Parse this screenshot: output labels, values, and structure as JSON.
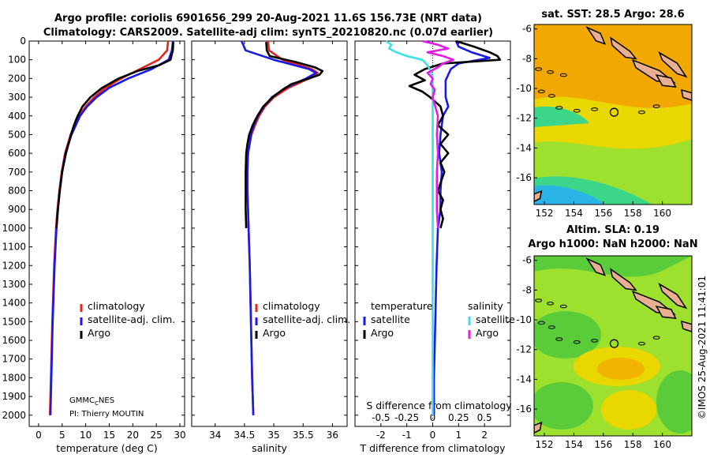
{
  "header": {
    "title_line1": "Argo profile: coriolis 6901656_299 20-Aug-2021 11.6S 156.73E (NRT data)",
    "title_line2": "Climatology: CARS2009. Satellite-adj clim: synTS_20210820.nc (0.07d earlier)"
  },
  "credits": {
    "agency_main": "GMMC",
    "agency_sub": "C",
    "agency_tail": "NES",
    "pi": "PI: Thierry MOUTIN",
    "imos": "©IMOS 25-Aug-2021 11:41:01"
  },
  "colors": {
    "climatology": "#e8231c",
    "satellite": "#1a1ae6",
    "argo": "#000000",
    "t_diff": "#3ee0e6",
    "s_diff": "#e61ae6",
    "land": "#e8b090",
    "ocean_warm": "#f2a800",
    "ocean_mid": "#e8d800"
  },
  "depth_axis": {
    "label_ticks": [
      "0",
      "100",
      "200",
      "300",
      "400",
      "500",
      "600",
      "700",
      "800",
      "900",
      "1000",
      "1100",
      "1200",
      "1300",
      "1400",
      "1500",
      "1600",
      "1700",
      "1800",
      "1900",
      "2000"
    ],
    "range": [
      0,
      2060
    ]
  },
  "chart_data": [
    {
      "type": "line",
      "id": "temperature",
      "xlabel": "temperature (deg C)",
      "xlim": [
        -2,
        31
      ],
      "xticks": [
        "0",
        "5",
        "10",
        "15",
        "20",
        "25",
        "30"
      ],
      "ylim": [
        0,
        2060
      ],
      "legend": [
        "climatology",
        "satellite-adj. clim.",
        "Argo"
      ],
      "series": [
        {
          "name": "climatology",
          "depth": [
            0,
            50,
            100,
            150,
            200,
            250,
            300,
            350,
            400,
            500,
            600,
            700,
            800,
            900,
            1000,
            1200,
            1500,
            1800,
            2000
          ],
          "values": [
            27.5,
            27.3,
            25.5,
            21.5,
            17.5,
            14.2,
            11.8,
            10.0,
            8.6,
            6.8,
            5.6,
            4.9,
            4.4,
            4.0,
            3.7,
            3.3,
            2.9,
            2.6,
            2.4
          ]
        },
        {
          "name": "satellite-adj. clim.",
          "depth": [
            0,
            50,
            100,
            150,
            200,
            250,
            300,
            350,
            400,
            500,
            600,
            700,
            800,
            900,
            1000,
            1200,
            1500,
            1800,
            2000
          ],
          "values": [
            28.5,
            28.3,
            27.6,
            24.0,
            19.0,
            15.0,
            12.3,
            10.3,
            8.8,
            7.0,
            5.7,
            5.0,
            4.5,
            4.1,
            3.8,
            3.4,
            3.0,
            2.7,
            2.5
          ]
        },
        {
          "name": "Argo",
          "depth": [
            5,
            50,
            100,
            130,
            160,
            200,
            250,
            300,
            350,
            400,
            450,
            500,
            600,
            700,
            800,
            900,
            1000
          ],
          "values": [
            28.6,
            28.5,
            28.0,
            25.5,
            21.0,
            17.0,
            13.5,
            11.0,
            9.3,
            8.3,
            7.5,
            6.9,
            5.8,
            5.0,
            4.5,
            4.1,
            3.8
          ]
        }
      ]
    },
    {
      "type": "line",
      "id": "salinity",
      "xlabel": "salinity",
      "xlim": [
        33.6,
        36.25
      ],
      "xticks": [
        "34",
        "34.5",
        "35",
        "35.5",
        "36"
      ],
      "ylim": [
        0,
        2060
      ],
      "legend": [
        "climatology",
        "satellite-adj. clim.",
        "Argo"
      ],
      "series": [
        {
          "name": "climatology",
          "depth": [
            0,
            50,
            100,
            150,
            170,
            200,
            250,
            300,
            350,
            400,
            450,
            500,
            600,
            700,
            800,
            900,
            1000,
            1200,
            1500,
            1800,
            2000
          ],
          "values": [
            34.9,
            34.92,
            35.15,
            35.65,
            35.75,
            35.6,
            35.25,
            35.0,
            34.85,
            34.75,
            34.68,
            34.62,
            34.56,
            34.55,
            34.55,
            34.56,
            34.57,
            34.59,
            34.61,
            34.63,
            34.65
          ]
        },
        {
          "name": "satellite-adj. clim.",
          "depth": [
            0,
            50,
            100,
            150,
            170,
            200,
            250,
            300,
            350,
            400,
            450,
            500,
            600,
            700,
            800,
            900,
            1000,
            1200,
            1500,
            1800,
            2000
          ],
          "values": [
            34.45,
            34.52,
            35.0,
            35.6,
            35.72,
            35.55,
            35.2,
            34.97,
            34.83,
            34.73,
            34.66,
            34.61,
            34.56,
            34.55,
            34.55,
            34.56,
            34.57,
            34.59,
            34.61,
            34.63,
            34.65
          ]
        },
        {
          "name": "Argo",
          "depth": [
            5,
            50,
            80,
            110,
            140,
            160,
            180,
            200,
            230,
            260,
            300,
            350,
            400,
            450,
            500,
            550,
            600,
            700,
            800,
            900,
            1000
          ],
          "values": [
            34.87,
            34.88,
            34.93,
            35.35,
            35.7,
            35.83,
            35.78,
            35.6,
            35.3,
            35.15,
            34.98,
            34.82,
            34.72,
            34.64,
            34.58,
            34.55,
            34.53,
            34.52,
            34.52,
            34.52,
            34.53
          ]
        }
      ]
    },
    {
      "type": "line",
      "id": "difference",
      "xlabel": "T difference from climatology",
      "xlabel_top": "S difference from climatology",
      "xlim": [
        -3,
        3
      ],
      "xticks": [
        "-2",
        "-1",
        "0",
        "1",
        "2"
      ],
      "xticks_top": [
        "-0.5",
        "-0.25",
        "0",
        "0.25",
        "0.5"
      ],
      "ylim": [
        0,
        2060
      ],
      "legend_headers": [
        "temperature",
        "salinity"
      ],
      "legend": [
        "satellite",
        "Argo",
        "satellite",
        "Argo"
      ],
      "series": [
        {
          "name": "T satellite",
          "depth": [
            0,
            30,
            60,
            90,
            120,
            150,
            180,
            210,
            240,
            270,
            300,
            350,
            400,
            500,
            600,
            700,
            800,
            900,
            1000,
            1200,
            1500,
            1800,
            2000
          ],
          "values": [
            0.9,
            1.0,
            1.5,
            2.2,
            1.0,
            0.7,
            0.6,
            0.5,
            0.5,
            0.5,
            0.5,
            0.6,
            0.4,
            0.3,
            0.25,
            0.35,
            0.3,
            0.3,
            0.2,
            0.15,
            0.1,
            0.05,
            0.05
          ]
        },
        {
          "name": "T Argo",
          "depth": [
            0,
            30,
            60,
            80,
            100,
            120,
            150,
            180,
            210,
            240,
            270,
            300,
            350,
            400,
            450,
            500,
            550,
            600,
            650,
            700,
            800,
            850,
            900,
            950,
            1000
          ],
          "values": [
            0.9,
            1.6,
            2.2,
            2.5,
            2.6,
            0.4,
            -0.3,
            -0.7,
            -0.3,
            -0.9,
            -0.4,
            -0.1,
            0.3,
            0.4,
            0.2,
            0.6,
            0.3,
            0.6,
            0.3,
            0.45,
            0.2,
            0.4,
            0.3,
            0.4,
            0.3
          ]
        },
        {
          "name": "S satellite",
          "depth": [
            0,
            20,
            40,
            60,
            80,
            100,
            130,
            160,
            200,
            300,
            400,
            500,
            600,
            800,
            1000,
            1200,
            1500,
            1800,
            2000
          ],
          "values": [
            -0.45,
            -0.4,
            -0.42,
            -0.35,
            -0.25,
            -0.1,
            -0.05,
            -0.02,
            0.0,
            0.0,
            0.0,
            0.0,
            0.0,
            0.0,
            0.0,
            0.0,
            0.0,
            0.0,
            0.0
          ]
        },
        {
          "name": "S Argo",
          "depth": [
            0,
            20,
            40,
            60,
            80,
            100,
            120,
            140,
            170,
            200,
            230,
            260,
            300,
            400,
            500,
            600,
            700,
            800,
            900,
            1000
          ],
          "values": [
            -0.1,
            0.05,
            0.15,
            -0.05,
            0.1,
            0.2,
            0.1,
            0.05,
            -0.05,
            0.0,
            -0.02,
            0.02,
            0.0,
            0.05,
            0.04,
            0.05,
            0.04,
            0.04,
            0.04,
            0.05
          ]
        }
      ]
    }
  ],
  "maps": [
    {
      "id": "sst-map",
      "title": "sat. SST: 28.5 Argo: 28.6",
      "xticks": [
        "152",
        "154",
        "156",
        "158",
        "160"
      ],
      "yticks": [
        "-6",
        "-8",
        "-10",
        "-12",
        "-14",
        "-16"
      ],
      "marker": {
        "lon": 156.73,
        "lat": -11.6
      }
    },
    {
      "id": "sla-map",
      "title_line1": "Altim. SLA: 0.19",
      "title_line2": "Argo h1000: NaN h2000: NaN",
      "xticks": [
        "152",
        "154",
        "156",
        "158",
        "160"
      ],
      "yticks": [
        "-6",
        "-8",
        "-10",
        "-12",
        "-14",
        "-16"
      ],
      "marker": {
        "lon": 156.73,
        "lat": -11.6
      }
    }
  ]
}
